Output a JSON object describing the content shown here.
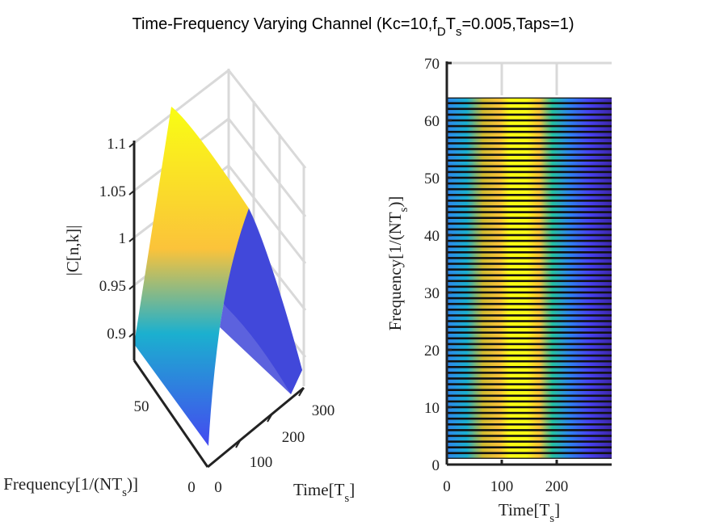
{
  "title_parts": {
    "a": "Time-Frequency Varying Channel (Kc=10,f",
    "a_sub": "D",
    "b": "T",
    "b_sub": "s",
    "c": "=0.005,Taps=1)"
  },
  "colormap": [
    "#3e26a8",
    "#4743f2",
    "#2d86ef",
    "#1bb0cf",
    "#26c2a0",
    "#7bcd5a",
    "#d0ba31",
    "#fbc33a",
    "#f9fb15"
  ],
  "chart_data": [
    {
      "type": "surface",
      "x_label": "Time[T",
      "x_label_sub": "s",
      "x_label_end": "]",
      "y_label": "Frequency[1/(NT",
      "y_label_sub": "s",
      "y_label_end": ")]",
      "z_label": "|C[n,k]|",
      "x_ticks": [
        "0",
        "100",
        "200",
        "300"
      ],
      "y_ticks": [
        "0",
        "50"
      ],
      "z_ticks": [
        "0.9",
        "0.95",
        "1",
        "1.05",
        "1.1"
      ],
      "x_range": [
        0,
        300
      ],
      "y_range": [
        0,
        64
      ],
      "z_range": [
        0.88,
        1.12
      ],
      "time_samples": [
        0,
        25,
        50,
        75,
        100,
        125,
        150,
        175,
        200,
        225,
        250,
        275,
        300
      ],
      "magnitude": [
        0.885,
        0.955,
        1.02,
        1.075,
        1.105,
        1.1,
        1.07,
        1.015,
        0.955,
        0.905,
        0.88,
        0.87,
        0.9
      ],
      "grid": true
    },
    {
      "type": "heatmap",
      "x_label": "Time[T",
      "x_label_sub": "s",
      "x_label_end": "]",
      "y_label": "Frequency[1/(NT",
      "y_label_sub": "s",
      "y_label_end": ")]",
      "x_ticks": [
        "0",
        "100",
        "200"
      ],
      "y_ticks": [
        "0",
        "10",
        "20",
        "30",
        "40",
        "50",
        "60",
        "70"
      ],
      "x_range": [
        0,
        300
      ],
      "y_range": [
        0,
        70
      ],
      "data_y_range": [
        1,
        64
      ],
      "grid": true
    }
  ]
}
